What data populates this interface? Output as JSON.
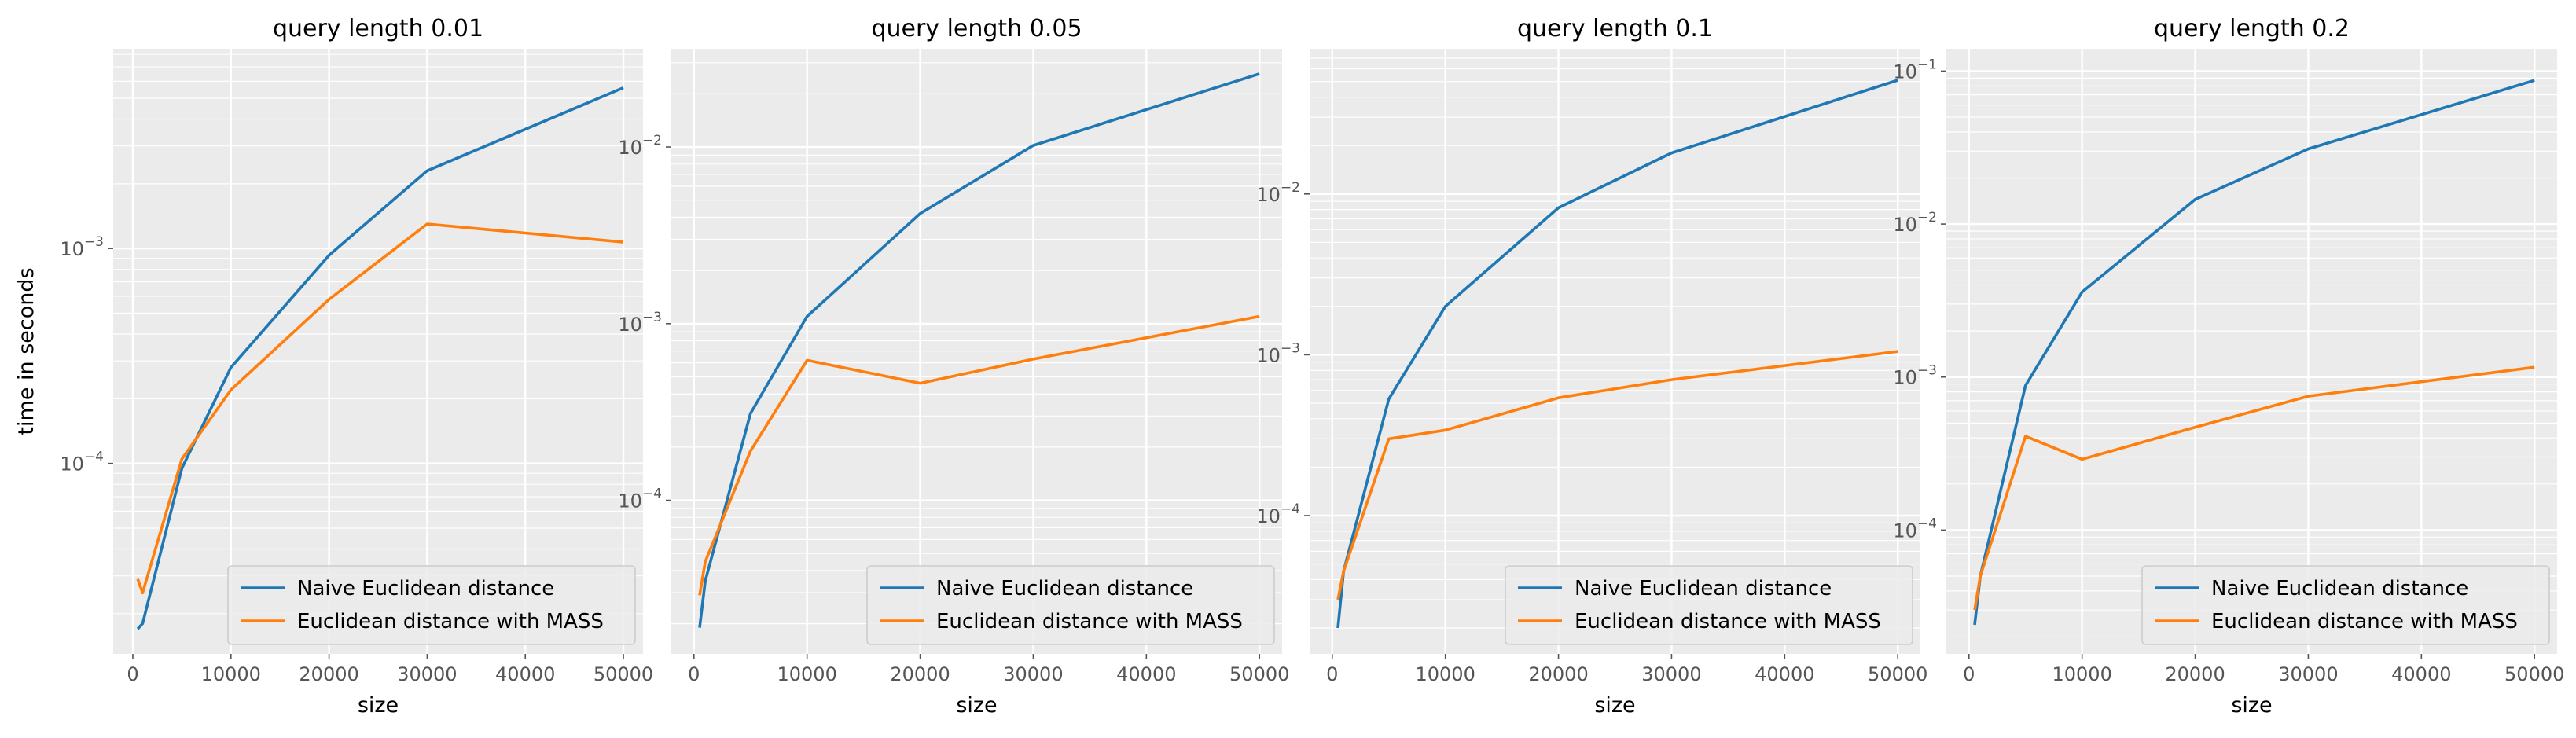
{
  "figure": {
    "ylabel": "time in seconds"
  },
  "chart_data": [
    {
      "type": "line",
      "title": "query length 0.01",
      "xlabel": "size",
      "ylabel": "time in seconds",
      "yscale": "log",
      "xlim": [
        -2000,
        52000
      ],
      "ylim": [
        1.3e-05,
        0.0085
      ],
      "xticks": [
        0,
        10000,
        20000,
        30000,
        40000,
        50000
      ],
      "yticks": [
        {
          "value": 0.0001,
          "base": "10",
          "exp": "−4"
        },
        {
          "value": 0.001,
          "base": "10",
          "exp": "−3"
        }
      ],
      "grid": true,
      "legend_position": "lower right",
      "x": [
        500,
        1000,
        5000,
        10000,
        20000,
        30000,
        50000
      ],
      "series": [
        {
          "name": "Naive Euclidean distance",
          "color": "#1f77b4",
          "values": [
            1.7e-05,
            1.8e-05,
            9.5e-05,
            0.00028,
            0.00093,
            0.0023,
            0.0056
          ]
        },
        {
          "name": "Euclidean distance with MASS",
          "color": "#ff7f0e",
          "values": [
            2.9e-05,
            2.5e-05,
            0.000105,
            0.00022,
            0.00058,
            0.0013,
            0.00107
          ]
        }
      ]
    },
    {
      "type": "line",
      "title": "query length 0.05",
      "xlabel": "size",
      "ylabel": "",
      "yscale": "log",
      "xlim": [
        -2000,
        52000
      ],
      "ylim": [
        1.35e-05,
        0.036
      ],
      "xticks": [
        0,
        10000,
        20000,
        30000,
        40000,
        50000
      ],
      "yticks": [
        {
          "value": 0.0001,
          "base": "10",
          "exp": "−4"
        },
        {
          "value": 0.001,
          "base": "10",
          "exp": "−3"
        },
        {
          "value": 0.01,
          "base": "10",
          "exp": "−2"
        }
      ],
      "grid": true,
      "legend_position": "lower right",
      "x": [
        500,
        1000,
        5000,
        10000,
        20000,
        30000,
        50000
      ],
      "series": [
        {
          "name": "Naive Euclidean distance",
          "color": "#1f77b4",
          "values": [
            1.9e-05,
            3.5e-05,
            0.00031,
            0.0011,
            0.0042,
            0.0102,
            0.026
          ]
        },
        {
          "name": "Euclidean distance with MASS",
          "color": "#ff7f0e",
          "values": [
            2.9e-05,
            4.5e-05,
            0.00019,
            0.00062,
            0.00046,
            0.00063,
            0.0011
          ]
        }
      ]
    },
    {
      "type": "line",
      "title": "query length 0.1",
      "xlabel": "size",
      "ylabel": "",
      "yscale": "log",
      "xlim": [
        -2000,
        52000
      ],
      "ylim": [
        1.38e-05,
        0.08
      ],
      "xticks": [
        0,
        10000,
        20000,
        30000,
        40000,
        50000
      ],
      "yticks": [
        {
          "value": 0.0001,
          "base": "10",
          "exp": "−4"
        },
        {
          "value": 0.001,
          "base": "10",
          "exp": "−3"
        },
        {
          "value": 0.01,
          "base": "10",
          "exp": "−2"
        }
      ],
      "grid": true,
      "legend_position": "lower right",
      "x": [
        500,
        1000,
        5000,
        10000,
        20000,
        30000,
        50000
      ],
      "series": [
        {
          "name": "Naive Euclidean distance",
          "color": "#1f77b4",
          "values": [
            2e-05,
            4.5e-05,
            0.00053,
            0.002,
            0.0082,
            0.018,
            0.051
          ]
        },
        {
          "name": "Euclidean distance with MASS",
          "color": "#ff7f0e",
          "values": [
            3e-05,
            4.5e-05,
            0.0003,
            0.00034,
            0.00054,
            0.0007,
            0.00105
          ]
        }
      ]
    },
    {
      "type": "line",
      "title": "query length 0.2",
      "xlabel": "size",
      "ylabel": "",
      "yscale": "log",
      "xlim": [
        -2000,
        52000
      ],
      "ylim": [
        1.55e-05,
        0.14
      ],
      "xticks": [
        0,
        10000,
        20000,
        30000,
        40000,
        50000
      ],
      "yticks": [
        {
          "value": 0.0001,
          "base": "10",
          "exp": "−4"
        },
        {
          "value": 0.001,
          "base": "10",
          "exp": "−3"
        },
        {
          "value": 0.01,
          "base": "10",
          "exp": "−2"
        },
        {
          "value": 0.1,
          "base": "10",
          "exp": "−1"
        }
      ],
      "grid": true,
      "legend_position": "lower right",
      "x": [
        500,
        1000,
        5000,
        10000,
        20000,
        30000,
        50000
      ],
      "series": [
        {
          "name": "Naive Euclidean distance",
          "color": "#1f77b4",
          "values": [
            2.4e-05,
            5e-05,
            0.00088,
            0.0036,
            0.0145,
            0.031,
            0.087
          ]
        },
        {
          "name": "Euclidean distance with MASS",
          "color": "#ff7f0e",
          "values": [
            3e-05,
            5e-05,
            0.00041,
            0.00029,
            0.00047,
            0.00075,
            0.00116
          ]
        }
      ]
    }
  ]
}
